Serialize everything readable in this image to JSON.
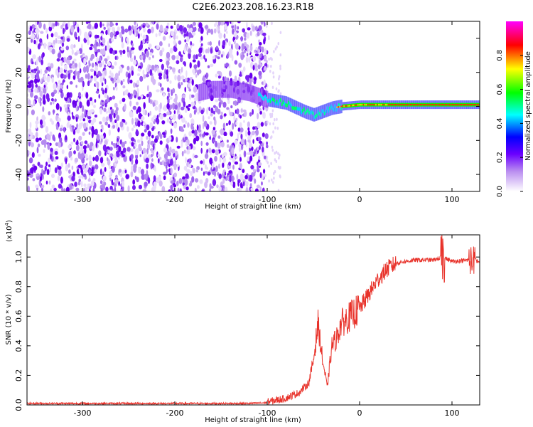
{
  "title": "C2E6.2023.208.16.23.R18",
  "chart_data": [
    {
      "type": "heatmap",
      "xlabel": "Height of straight line (km)",
      "ylabel": "Frequency (Hz)",
      "xlim": [
        -360,
        130
      ],
      "ylim": [
        -50,
        50
      ],
      "xticks": [
        -300,
        -200,
        -100,
        0,
        100
      ],
      "yticks": [
        -40,
        -20,
        0,
        20,
        40
      ],
      "colorbar": {
        "label": "Normalized spectral amplitude",
        "range": [
          0.0,
          1.0
        ],
        "ticks": [
          "0.0",
          "0.2",
          "0.4",
          "0.6",
          "0.8"
        ],
        "colors": [
          "#ffffff",
          "#8a2be2",
          "#0000ff",
          "#00ffff",
          "#00ff00",
          "#ffff00",
          "#ff0000",
          "#ff00ff"
        ]
      },
      "ridge": {
        "note_color": "#ff0000",
        "points": [
          [
            -175,
            8
          ],
          [
            -160,
            10
          ],
          [
            -140,
            10
          ],
          [
            -120,
            8
          ],
          [
            -100,
            4
          ],
          [
            -80,
            2
          ],
          [
            -60,
            -3
          ],
          [
            -50,
            -5
          ],
          [
            -40,
            -3
          ],
          [
            -30,
            -1
          ],
          [
            -20,
            0
          ],
          [
            0,
            1
          ],
          [
            50,
            1
          ],
          [
            100,
            1
          ],
          [
            130,
            1
          ]
        ]
      }
    },
    {
      "type": "line",
      "xlabel": "Height of straight line (km)",
      "ylabel": "SNR (10 * v/v)",
      "yscale_label": "(x10",
      "yscale_exp": "4",
      "xlim": [
        -360,
        130
      ],
      "ylim": [
        0,
        1.15
      ],
      "xticks": [
        -300,
        -200,
        -100,
        0,
        100
      ],
      "yticks": [
        "0.0",
        "0.2",
        "0.4",
        "0.6",
        "0.8",
        "1.0"
      ],
      "color": "#e8322a",
      "profile": [
        [
          -360,
          0.01
        ],
        [
          -120,
          0.01
        ],
        [
          -100,
          0.015
        ],
        [
          -80,
          0.04
        ],
        [
          -65,
          0.08
        ],
        [
          -55,
          0.15
        ],
        [
          -50,
          0.3
        ],
        [
          -45,
          0.55
        ],
        [
          -40,
          0.3
        ],
        [
          -35,
          0.12
        ],
        [
          -30,
          0.4
        ],
        [
          -25,
          0.45
        ],
        [
          -20,
          0.55
        ],
        [
          -10,
          0.6
        ],
        [
          0,
          0.65
        ],
        [
          10,
          0.75
        ],
        [
          20,
          0.85
        ],
        [
          30,
          0.92
        ],
        [
          40,
          0.96
        ],
        [
          60,
          0.98
        ],
        [
          80,
          0.98
        ],
        [
          90,
          1.0
        ],
        [
          100,
          0.97
        ],
        [
          120,
          0.98
        ],
        [
          130,
          0.97
        ]
      ]
    }
  ]
}
